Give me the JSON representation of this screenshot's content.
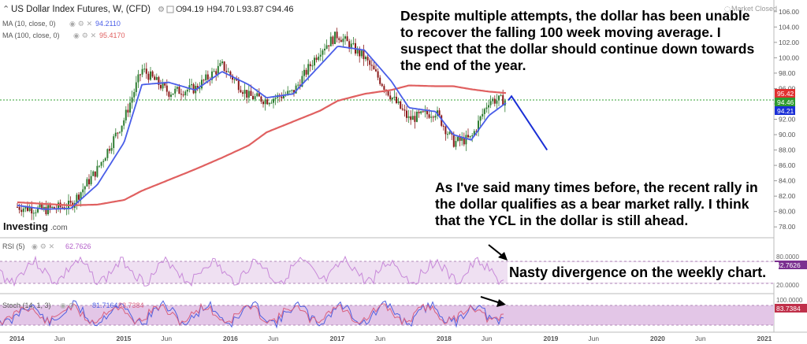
{
  "header": {
    "symbol": "US Dollar Index Futures, W, (CFD)",
    "o_label": "O",
    "o": "94.19",
    "h_label": "H",
    "h": "94.70",
    "l_label": "L",
    "l": "93.87",
    "c_label": "C",
    "c": "94.46",
    "market_status": "Market Closed",
    "ma10_label": "MA (10, close, 0)",
    "ma10_value": "94.2110",
    "ma100_label": "MA (100, close, 0)",
    "ma100_value": "95.4170"
  },
  "watermark": {
    "brand": "Investing",
    "suffix": ".com"
  },
  "annotations": {
    "top": "Despite multiple attempts, the dollar has been unable to recover the falling 100 week moving average. I suspect that the dollar should continue down towards the end of the year.",
    "right": "As I've said many times before, the recent rally in the dollar qualifies as a bear market rally. I think that the YCL in the dollar is still ahead.",
    "divergence": "Nasty divergence on the weekly chart."
  },
  "rsi": {
    "label": "RSI (5)",
    "value": "62.7626",
    "axis": [
      "80.0000",
      "20.0000"
    ]
  },
  "stoch": {
    "label": "Stoch (14, 1, 3)",
    "k": "81.7164",
    "d": "83.7384",
    "axis": [
      "100.0000"
    ]
  },
  "colors": {
    "bull": "#2e7d32",
    "bear": "#8b1a1a",
    "ma10": "#4a5ee8",
    "ma100": "#e06060",
    "projection": "#1a2fd6",
    "band": "#e8d8ee",
    "rsi_line": "#c889d9",
    "stoch_k": "#5060e0",
    "stoch_d": "#d86080",
    "current_line": "#33a033"
  },
  "chart_data": {
    "type": "line",
    "title": "US Dollar Index Futures, W, (CFD)",
    "ohlc_last": {
      "open": 94.19,
      "high": 94.7,
      "low": 93.87,
      "close": 94.46
    },
    "x_ticks": [
      "2014",
      "Jun",
      "2015",
      "Jun",
      "2016",
      "Jun",
      "2017",
      "Jun",
      "2018",
      "Jun",
      "2019",
      "Jun",
      "2020",
      "Jun",
      "2021"
    ],
    "y_ticks": [
      "106.00",
      "104.00",
      "102.00",
      "100.00",
      "98.00",
      "96.00",
      "94.00",
      "92.00",
      "90.00",
      "88.00",
      "86.00",
      "84.00",
      "82.00",
      "80.00",
      "78.00"
    ],
    "ylim": [
      77,
      107
    ],
    "price_series_dates": [
      "2014-01",
      "2014-04",
      "2014-07",
      "2014-10",
      "2015-01",
      "2015-03",
      "2015-06",
      "2015-09",
      "2015-12",
      "2016-03",
      "2016-05",
      "2016-08",
      "2016-11",
      "2017-01",
      "2017-04",
      "2017-07",
      "2017-09",
      "2017-12",
      "2018-02",
      "2018-04",
      "2018-06",
      "2018-08"
    ],
    "price_series": [
      80.6,
      80.2,
      80.8,
      85.5,
      92.0,
      98.5,
      95.5,
      96.0,
      99.0,
      95.0,
      94.5,
      95.5,
      101.0,
      103.0,
      100.0,
      95.0,
      92.0,
      93.0,
      89.0,
      89.5,
      94.5,
      94.46
    ],
    "series": [
      {
        "name": "MA (10, close, 0)",
        "last": 94.211,
        "values": [
          80.8,
          80.3,
          80.4,
          83.5,
          89.0,
          96.5,
          96.8,
          95.8,
          98.2,
          96.5,
          94.8,
          95.3,
          99.0,
          101.5,
          101.0,
          97.0,
          93.5,
          93.0,
          90.0,
          89.3,
          92.5,
          94.2
        ]
      },
      {
        "name": "MA (100, close, 0)",
        "last": 95.417,
        "values": [
          81.2,
          81.0,
          80.8,
          80.9,
          81.5,
          82.7,
          84.1,
          85.5,
          87.0,
          88.6,
          90.3,
          91.7,
          93.1,
          94.4,
          95.3,
          95.8,
          96.4,
          96.3,
          96.3,
          95.9,
          95.6,
          95.4
        ]
      }
    ],
    "projection": {
      "dates": [
        "2018-08",
        "2018-12"
      ],
      "values": [
        95.0,
        88.0
      ]
    },
    "price_labels": {
      "ma100": "95.42",
      "close": "94.46",
      "ma10": "94.21"
    },
    "indicators": {
      "rsi": {
        "name": "RSI (5)",
        "last": 62.7626,
        "band": [
          20,
          80
        ]
      },
      "stoch": {
        "name": "Stoch (14, 1, 3)",
        "k_last": 81.7164,
        "d_last": 83.7384,
        "band": [
          20,
          80
        ]
      }
    }
  }
}
